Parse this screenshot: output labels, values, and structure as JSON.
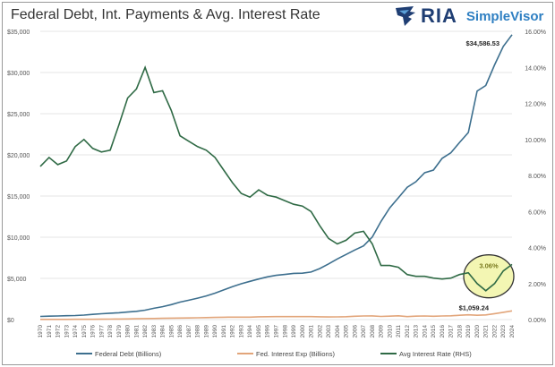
{
  "chart_data": {
    "type": "line",
    "title": "Federal Debt, Int. Payments & Avg. Interest Rate",
    "logo": {
      "brand": "RIA",
      "product": "SimpleVisor"
    },
    "x": [
      1970,
      1971,
      1972,
      1973,
      1974,
      1975,
      1976,
      1977,
      1978,
      1979,
      1980,
      1981,
      1982,
      1983,
      1984,
      1985,
      1986,
      1987,
      1988,
      1989,
      1990,
      1991,
      1992,
      1993,
      1994,
      1995,
      1996,
      1997,
      1998,
      1999,
      2000,
      2001,
      2002,
      2003,
      2004,
      2005,
      2006,
      2007,
      2008,
      2009,
      2010,
      2011,
      2012,
      2013,
      2014,
      2015,
      2016,
      2017,
      2018,
      2019,
      2020,
      2021,
      2022,
      2023,
      2024
    ],
    "left_axis": {
      "ylim": [
        0,
        35000
      ],
      "ticks": [
        "$0",
        "$5,000",
        "$10,000",
        "$15,000",
        "$20,000",
        "$25,000",
        "$30,000",
        "$35,000"
      ]
    },
    "right_axis": {
      "ylim": [
        0,
        16
      ],
      "ticks": [
        "0.00%",
        "2.00%",
        "4.00%",
        "6.00%",
        "8.00%",
        "10.00%",
        "12.00%",
        "14.00%",
        "16.00%"
      ]
    },
    "series": [
      {
        "name": "Federal Debt (Billions)",
        "axis": "left",
        "color": "#3d6f8e",
        "values": [
          380,
          410,
          435,
          466,
          484,
          542,
          629,
          706,
          777,
          829,
          909,
          995,
          1137,
          1372,
          1565,
          1818,
          2121,
          2346,
          2601,
          2868,
          3206,
          3598,
          4002,
          4351,
          4643,
          4921,
          5181,
          5369,
          5478,
          5606,
          5629,
          5770,
          6198,
          6760,
          7355,
          7905,
          8451,
          8951,
          10025,
          11910,
          13562,
          14790,
          16066,
          16738,
          17824,
          18151,
          19573,
          20245,
          21516,
          22719,
          27748,
          28429,
          30929,
          33167,
          34586.53
        ]
      },
      {
        "name": "Fed. Interest Exp (Billions)",
        "axis": "left",
        "color": "#e2a57a",
        "values": [
          19,
          21,
          22,
          25,
          30,
          33,
          37,
          42,
          49,
          60,
          75,
          96,
          117,
          128,
          153,
          179,
          190,
          195,
          214,
          240,
          264,
          286,
          292,
          292,
          296,
          332,
          344,
          356,
          364,
          354,
          362,
          359,
          333,
          318,
          322,
          352,
          406,
          430,
          451,
          383,
          414,
          454,
          359,
          416,
          430,
          402,
          433,
          458,
          523,
          575,
          523,
          562,
          718,
          879,
          1059.24
        ]
      },
      {
        "name": "Avg Interest Rate (RHS)",
        "axis": "right",
        "color": "#2f6a45",
        "values": [
          8.5,
          9.0,
          8.6,
          8.8,
          9.6,
          10.0,
          9.5,
          9.3,
          9.4,
          10.8,
          12.3,
          12.8,
          14.0,
          12.6,
          12.7,
          11.6,
          10.2,
          9.9,
          9.6,
          9.4,
          9.0,
          8.3,
          7.6,
          7.0,
          6.8,
          7.2,
          6.9,
          6.8,
          6.6,
          6.4,
          6.3,
          6.0,
          5.2,
          4.5,
          4.2,
          4.4,
          4.8,
          4.9,
          4.2,
          3.0,
          3.0,
          2.9,
          2.5,
          2.4,
          2.4,
          2.3,
          2.25,
          2.3,
          2.5,
          2.6,
          2.0,
          1.6,
          2.0,
          2.7,
          3.06
        ]
      }
    ],
    "annotations": [
      {
        "text": "$34,586.53",
        "series": "Federal Debt (Billions)",
        "x": 2024
      },
      {
        "text": "$1,059.24",
        "series": "Fed. Interest Exp (Billions)",
        "x": 2024
      },
      {
        "text": "3.06%",
        "series": "Avg Interest Rate (RHS)",
        "x": 2024,
        "highlight": true
      }
    ],
    "legend": "bottom",
    "grid": true
  }
}
